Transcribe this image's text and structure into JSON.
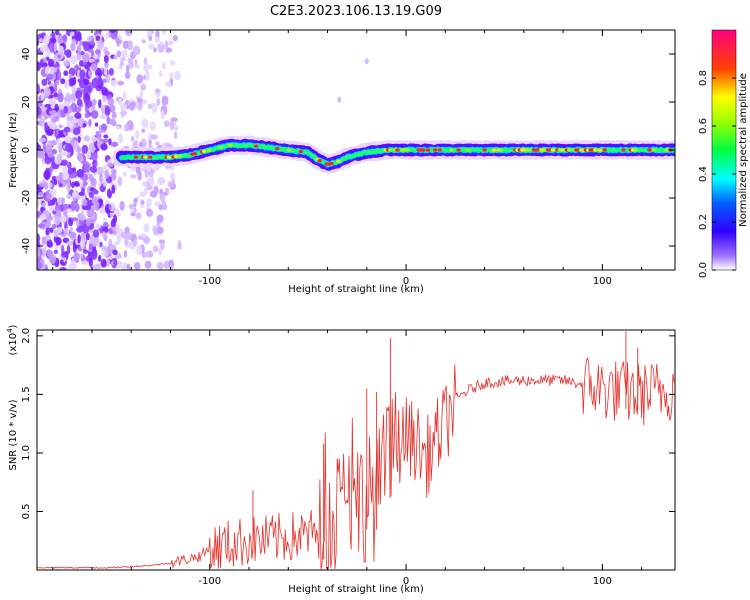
{
  "title": "C2E3.2023.106.13.19.G09",
  "colors": {
    "snr_line": "#e8302a",
    "background": "#ffffff",
    "axis": "#000000"
  },
  "chart_data": [
    {
      "type": "heatmap",
      "name": "spectrogram",
      "xlabel": "Height of straight line (km)",
      "ylabel": "Frequency (Hz)",
      "xlim": [
        -188,
        137
      ],
      "ylim": [
        -50,
        50
      ],
      "xticks": [
        -100,
        0,
        100
      ],
      "xtick_labels": [
        "-100",
        "0",
        "100"
      ],
      "yticks": [
        -40,
        -20,
        0,
        20,
        40
      ],
      "ytick_labels": [
        "-40",
        "-20",
        "0",
        "20",
        "40"
      ],
      "colorbar": {
        "label": "Normalized spectral amplitude",
        "range": [
          0.0,
          1.0
        ],
        "ticks": [
          0.0,
          0.2,
          0.4,
          0.6,
          0.8
        ],
        "tick_labels": [
          "0.0",
          "0.2",
          "0.4",
          "0.6",
          "0.8"
        ],
        "colormap": [
          "#ffffff",
          "#6600ff",
          "#0000ff",
          "#00ffff",
          "#00ff00",
          "#ffff00",
          "#ff0000",
          "#ff0066"
        ]
      },
      "ridge": {
        "description": "Frequency of the spectral ridge vs height (Hz)",
        "x": [
          -145,
          -130,
          -120,
          -110,
          -100,
          -90,
          -80,
          -70,
          -60,
          -50,
          -45,
          -40,
          -35,
          -30,
          -25,
          -20,
          -10,
          0,
          10,
          20,
          40,
          60,
          80,
          100,
          110,
          120,
          137
        ],
        "y": [
          -3,
          -3,
          -3,
          -2,
          0,
          2,
          2,
          1,
          0,
          -1,
          -4,
          -6,
          -5,
          -3,
          -2,
          -1,
          0,
          0,
          0,
          0,
          0,
          0,
          0,
          0,
          0,
          0,
          0
        ]
      }
    },
    {
      "type": "line",
      "name": "snr",
      "xlabel": "Height of straight line (km)",
      "ylabel": "SNR (10 * v/v)",
      "y_multiplier": "(x10",
      "y_multiplier_exp": "4",
      "y_multiplier_close": ")",
      "xlim": [
        -188,
        137
      ],
      "ylim": [
        0,
        2.05
      ],
      "xticks": [
        -100,
        0,
        100
      ],
      "xtick_labels": [
        "-100",
        "0",
        "100"
      ],
      "yticks": [
        0.5,
        1.0,
        1.5,
        2.0
      ],
      "ytick_labels": [
        "0.5",
        "1.0",
        "1.5",
        "2.0"
      ],
      "series": [
        {
          "name": "SNR",
          "envelope": {
            "description": "Approximate trend of SNR (units of 10^4) vs height",
            "x": [
              -188,
              -150,
              -130,
              -120,
              -105,
              -100,
              -90,
              -80,
              -70,
              -60,
              -50,
              -40,
              -35,
              -30,
              -25,
              -20,
              -15,
              -10,
              -5,
              0,
              5,
              10,
              15,
              20,
              25,
              30,
              40,
              60,
              80,
              100,
              110,
              120,
              137
            ],
            "y": [
              0.02,
              0.02,
              0.04,
              0.06,
              0.12,
              0.18,
              0.22,
              0.25,
              0.26,
              0.28,
              0.3,
              0.38,
              0.5,
              0.55,
              0.6,
              0.62,
              0.62,
              0.9,
              1.05,
              1.15,
              1.1,
              0.95,
              1.1,
              1.25,
              1.45,
              1.52,
              1.6,
              1.62,
              1.62,
              1.55,
              1.52,
              1.5,
              1.55
            ]
          },
          "peaks": [
            {
              "x": -8,
              "y": 1.98
            },
            {
              "x": 112,
              "y": 2.04
            },
            {
              "x": 118,
              "y": 1.9
            },
            {
              "x": -20,
              "y": 1.55
            },
            {
              "x": -15,
              "y": 1.52
            },
            {
              "x": -42,
              "y": 1.08
            },
            {
              "x": -78,
              "y": 0.68
            }
          ]
        }
      ]
    }
  ]
}
